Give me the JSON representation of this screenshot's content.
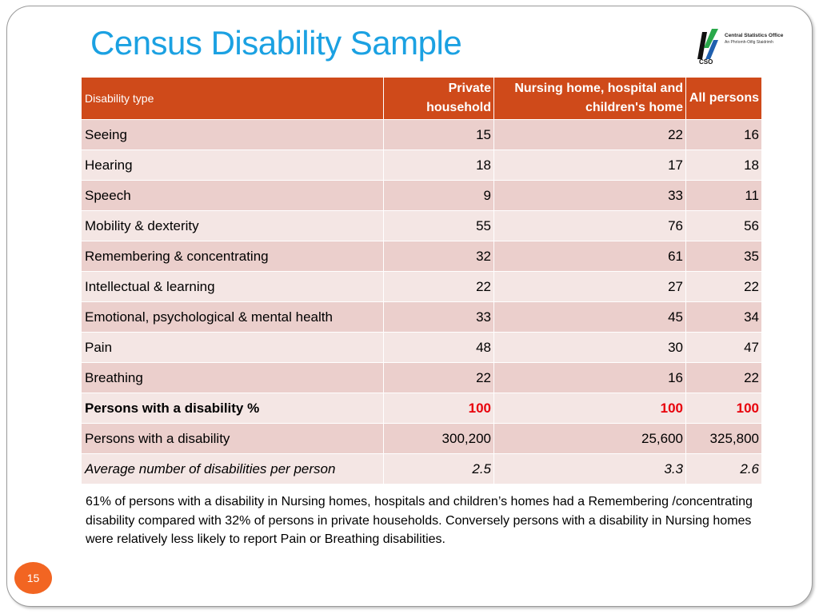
{
  "slide": {
    "title": "Census Disability Sample",
    "page_number": "15"
  },
  "logo": {
    "line1": "Central Statistics Office",
    "line2": "An Phríomh-Oifig Staidrimh",
    "mark_text": "CSO",
    "colors": {
      "blue": "#1f5fae",
      "green": "#2aa84a",
      "black": "#111111"
    }
  },
  "table": {
    "headers": [
      "Disability type",
      "Private household",
      "Nursing home, hospital and children's home",
      "All persons"
    ],
    "rows": [
      [
        "Seeing",
        "15",
        "22",
        "16"
      ],
      [
        "Hearing",
        "18",
        "17",
        "18"
      ],
      [
        "Speech",
        "9",
        "33",
        "11"
      ],
      [
        "Mobility & dexterity",
        "55",
        "76",
        "56"
      ],
      [
        "Remembering & concentrating",
        "32",
        "61",
        "35"
      ],
      [
        "Intellectual & learning",
        "22",
        "27",
        "22"
      ],
      [
        "Emotional, psychological & mental health",
        "33",
        "45",
        "34"
      ],
      [
        "Pain",
        "48",
        "30",
        "47"
      ],
      [
        "Breathing",
        "22",
        "16",
        "22"
      ],
      [
        "Persons with a disability %",
        "100",
        "100",
        "100"
      ],
      [
        "Persons with a disability",
        "300,200",
        "25,600",
        "325,800"
      ],
      [
        "Average number of disabilities per person",
        "2.5",
        "3.3",
        "2.6"
      ]
    ]
  },
  "note": "61% of persons with a disability in Nursing homes, hospitals and children’s homes had a Remembering /concentrating disability compared with 32% of persons in private households. Conversely persons with a disability in Nursing homes were relatively less likely to report Pain or Breathing disabilities.",
  "colors": {
    "title": "#1ba1e2",
    "header_bg": "#cf4a1a",
    "row_dark": "#ebcfcc",
    "row_light": "#f4e6e4",
    "highlight_red": "#e8000b",
    "badge": "#f26522"
  }
}
